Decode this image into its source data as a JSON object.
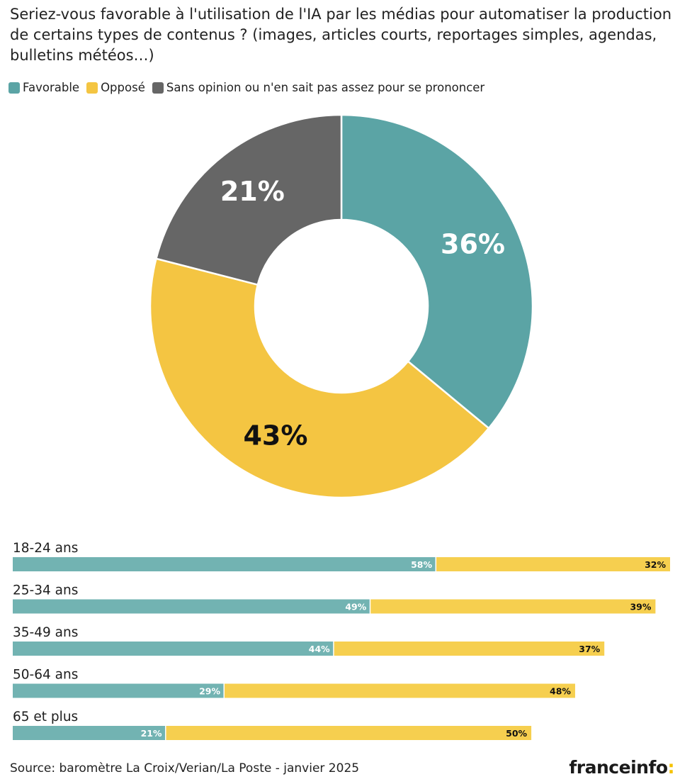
{
  "chart_data": [
    {
      "type": "pie",
      "title": "Seriez-vous favorable à l'utilisation de l'IA par les médias pour automatiser la production de certains types de contenus ? (images, articles courts, reportages simples, agendas, bulletins météos…)",
      "legend": [
        "Favorable",
        "Opposé",
        "Sans opinion ou n'en sait pas assez pour se prononcer"
      ],
      "legend_position": "top-left",
      "colors": [
        "#5ba4a5",
        "#f4c542",
        "#666666"
      ],
      "values": [
        36,
        43,
        21
      ],
      "labels": [
        "36%",
        "43%",
        "21%"
      ]
    },
    {
      "type": "bar",
      "orientation": "horizontal",
      "stacked": true,
      "categories": [
        "18-24 ans",
        "25-34 ans",
        "35-49 ans",
        "50-64 ans",
        "65 et plus"
      ],
      "series": [
        {
          "name": "Favorable",
          "color": "#72b3b2",
          "values": [
            58,
            49,
            44,
            29,
            21
          ],
          "labels": [
            "58%",
            "49%",
            "44%",
            "29%",
            "21%"
          ]
        },
        {
          "name": "Opposé",
          "color": "#f6cf4f",
          "values": [
            32,
            39,
            37,
            48,
            50
          ],
          "labels": [
            "32%",
            "39%",
            "37%",
            "48%",
            "50%"
          ]
        }
      ],
      "xlim": [
        0,
        90
      ]
    }
  ],
  "source": "Source: baromètre La Croix/Verian/La Poste - janvier 2025",
  "logo": {
    "text": "franceinfo",
    "accent": ":"
  }
}
